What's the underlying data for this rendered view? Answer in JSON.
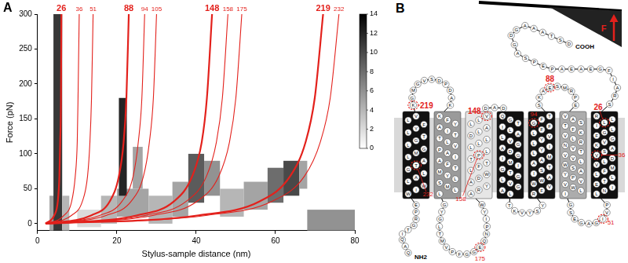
{
  "chart_data": {
    "type": "line",
    "panel": "A",
    "x_label": "Stylus-sample distance (nm)",
    "y_label": "Force (pN)",
    "xlim": [
      0,
      80
    ],
    "xticks": [
      0,
      20,
      40,
      60,
      80
    ],
    "ylim": [
      -10,
      300
    ],
    "yticks": [
      0,
      50,
      100,
      150,
      200,
      250,
      300
    ],
    "grid": false,
    "series": [
      {
        "name": "26",
        "color": "#e3211c",
        "line_style": "thick",
        "x": [
          2,
          4.2,
          5.1,
          5.5,
          5.7,
          5.9,
          6
        ],
        "values": [
          0,
          12,
          32,
          68,
          117,
          180,
          300
        ]
      },
      {
        "name": "36",
        "color": "#e3211c",
        "line_style": "thin",
        "x": [
          2,
          6.7,
          8.6,
          9.5,
          10.0,
          10.2,
          10.5
        ],
        "values": [
          0,
          12,
          32,
          68,
          117,
          180,
          300
        ]
      },
      {
        "name": "51",
        "color": "#e3211c",
        "line_style": "thin",
        "x": [
          2,
          8.6,
          11.3,
          12.6,
          13.2,
          13.6,
          14
        ],
        "values": [
          0,
          12,
          32,
          68,
          117,
          180,
          300
        ]
      },
      {
        "name": "88",
        "color": "#e3211c",
        "line_style": "thick",
        "x": [
          2,
          13.6,
          18.2,
          20.5,
          21.7,
          22.4,
          23
        ],
        "values": [
          0,
          12,
          32,
          68,
          117,
          180,
          300
        ]
      },
      {
        "name": "94",
        "color": "#e3211c",
        "line_style": "thin",
        "x": [
          2,
          15.8,
          21.3,
          24.1,
          25.4,
          26.3,
          27
        ],
        "values": [
          0,
          12,
          32,
          68,
          117,
          180,
          300
        ]
      },
      {
        "name": "105",
        "color": "#e3211c",
        "line_style": "thin",
        "x": [
          2,
          17.4,
          23.6,
          26.7,
          28.2,
          29.2,
          30
        ],
        "values": [
          0,
          12,
          32,
          68,
          117,
          180,
          300
        ]
      },
      {
        "name": "148",
        "color": "#e3211c",
        "line_style": "thick",
        "x": [
          2,
          25.1,
          34.4,
          39.0,
          41.4,
          42.7,
          44
        ],
        "values": [
          0,
          12,
          32,
          68,
          117,
          180,
          300
        ]
      },
      {
        "name": "158",
        "color": "#e3211c",
        "line_style": "thin",
        "x": [
          2,
          27.3,
          37.5,
          42.6,
          45.1,
          46.6,
          48
        ],
        "values": [
          0,
          12,
          32,
          68,
          117,
          180,
          300
        ]
      },
      {
        "name": "175",
        "color": "#e3211c",
        "line_style": "thin",
        "x": [
          2,
          29.3,
          40.2,
          45.7,
          48.4,
          50.0,
          51.5
        ],
        "values": [
          0,
          12,
          32,
          68,
          117,
          180,
          300
        ]
      },
      {
        "name": "219",
        "color": "#e3211c",
        "line_style": "thick",
        "x": [
          2,
          40.6,
          56.0,
          63.7,
          67.6,
          69.9,
          72
        ],
        "values": [
          0,
          12,
          32,
          68,
          117,
          180,
          300
        ]
      },
      {
        "name": "232",
        "color": "#e3211c",
        "line_style": "thin",
        "x": [
          2,
          42.8,
          59.1,
          67.3,
          71.3,
          73.8,
          76
        ],
        "values": [
          0,
          12,
          32,
          68,
          117,
          180,
          300
        ]
      }
    ],
    "heatmap": {
      "cells": [
        [
          3,
          4,
          -10,
          40,
          5
        ],
        [
          4,
          6.2,
          -10,
          300,
          11
        ],
        [
          6.2,
          8,
          -10,
          40,
          4
        ],
        [
          10,
          16,
          -5,
          20,
          2
        ],
        [
          16,
          20,
          0,
          40,
          4
        ],
        [
          20,
          28,
          10,
          50,
          5
        ],
        [
          20.5,
          22.5,
          40,
          180,
          12
        ],
        [
          24,
          26.5,
          50,
          110,
          5
        ],
        [
          28,
          34,
          0,
          40,
          4
        ],
        [
          34,
          38,
          10,
          60,
          5
        ],
        [
          38,
          42,
          30,
          100,
          9
        ],
        [
          42,
          46,
          40,
          90,
          6
        ],
        [
          46,
          52,
          10,
          50,
          4
        ],
        [
          52,
          58,
          20,
          60,
          5
        ],
        [
          58,
          62,
          30,
          80,
          8
        ],
        [
          62,
          66,
          40,
          90,
          10
        ],
        [
          66,
          68,
          50,
          90,
          5
        ],
        [
          68,
          80,
          -10,
          20,
          6
        ]
      ],
      "colorbar": {
        "range": [
          0,
          14
        ],
        "ticks": [
          0,
          2,
          4,
          6,
          8,
          10,
          12,
          14
        ]
      }
    }
  },
  "diagram": {
    "panel": "B",
    "n_terminus": "NH2",
    "c_terminus": "COOH",
    "force": "F",
    "segments": [
      {
        "kind": "loop",
        "residues": "QAQITGRPE"
      },
      {
        "kind": "helix",
        "residues": "WIWLALGTALMGLGTLYFLV"
      },
      {
        "kind": "loop",
        "residues": "KGMGVSDPDAK"
      },
      {
        "kind": "helix",
        "residues": "KFYAITTLVPAIAFTMYLSMLL"
      },
      {
        "kind": "loop",
        "residues": "GYGLTMVPFGGEQNPIYW"
      },
      {
        "kind": "helix",
        "residues": "ARYADWLFTTPLLLLDLALLV"
      },
      {
        "kind": "loop",
        "residues": "DAD"
      },
      {
        "kind": "helix",
        "residues": "QGTILALVGADGIMIGTGLVGAL"
      },
      {
        "kind": "loop",
        "residues": "TKVYSY"
      },
      {
        "kind": "helix",
        "residues": "RFVWWAISTAAMLYILYVLFFGFT"
      },
      {
        "kind": "loop",
        "residues": "SKAESMRPE"
      },
      {
        "kind": "helix",
        "residues": "VASTFKVLRNVTVVLWSAYPVVWLI"
      },
      {
        "kind": "loop",
        "residues": "GSEGAGIVP"
      },
      {
        "kind": "helix",
        "residues": "LNIETLLFMVLDVSAKVGFGLILLR"
      },
      {
        "kind": "loop",
        "residues": "SRAIFGEAEAPEPSAGDGAAATSD"
      }
    ],
    "marks": [
      219,
      232,
      175,
      148,
      158,
      88,
      94,
      51,
      26,
      36
    ]
  }
}
